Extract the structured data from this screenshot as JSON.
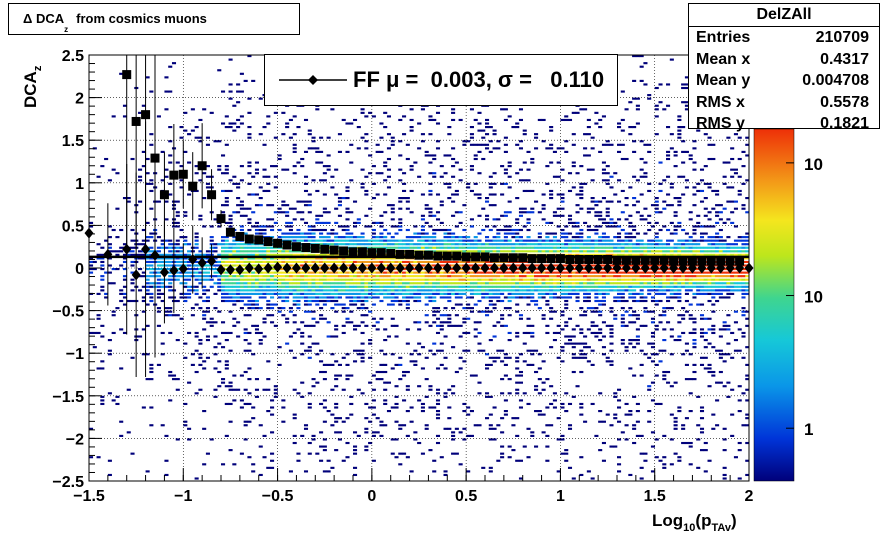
{
  "chart_data": {
    "type": "heatmap",
    "title": "Δ DCA",
    "title_sub": "z",
    "title_rest": "from cosmics muons",
    "xlabel": "Log",
    "xlabel_sub1": "10",
    "xlabel_paren": "(p",
    "xlabel_sub2": "TAv",
    "xlabel_close": ")",
    "ylabel": "DCA",
    "ylabel_sub": "z",
    "xlim": [
      -1.5,
      2
    ],
    "ylim": [
      -2.5,
      2.5
    ],
    "x_ticks": [
      "−1.5",
      "−1",
      "−0.5",
      "0",
      "0.5",
      "1",
      "1.5",
      "2"
    ],
    "x_tick_values": [
      -1.5,
      -1,
      -0.5,
      0,
      0.5,
      1,
      1.5,
      2
    ],
    "y_ticks": [
      "−2.5",
      "−2",
      "−1.5",
      "−1",
      "−0.5",
      "0",
      "0.5",
      "1",
      "1.5",
      "2",
      "2.5"
    ],
    "y_tick_values": [
      -2.5,
      -2,
      -1.5,
      -1,
      -0.5,
      0,
      0.5,
      1,
      1.5,
      2,
      2.5
    ],
    "z_scale": "log",
    "z_ticks": [
      "1",
      "10",
      "10"
    ],
    "z_tick_values": [
      1,
      10,
      100
    ],
    "grid": true,
    "stats": {
      "name": "DelZAll",
      "rows": [
        {
          "label": "Entries",
          "value": "210709"
        },
        {
          "label": "Mean x",
          "value": "0.4317"
        },
        {
          "label": "Mean y",
          "value": "0.004708"
        },
        {
          "label": "RMS x",
          "value": "0.5578"
        },
        {
          "label": "RMS y",
          "value": "0.1821"
        }
      ]
    },
    "legend": {
      "text": "FF μ =  0.003, σ =   0.110"
    },
    "fit_line": {
      "x": [
        -1.5,
        2
      ],
      "y": [
        0.13,
        0.13
      ]
    },
    "sigma_series": {
      "marker": "square",
      "x": [
        -1.3,
        -1.25,
        -1.2,
        -1.15,
        -1.1,
        -1.05,
        -1.0,
        -0.95,
        -0.9,
        -0.85,
        -0.8,
        -0.75,
        -0.7,
        -0.65,
        -0.6,
        -0.55,
        -0.5,
        -0.45,
        -0.4,
        -0.35,
        -0.3,
        -0.25,
        -0.2,
        -0.15,
        -0.1,
        -0.05,
        0.0,
        0.05,
        0.1,
        0.15,
        0.2,
        0.25,
        0.3,
        0.35,
        0.4,
        0.45,
        0.5,
        0.55,
        0.6,
        0.65,
        0.7,
        0.75,
        0.8,
        0.85,
        0.9,
        0.95,
        1.0,
        1.05,
        1.1,
        1.15,
        1.2,
        1.25,
        1.3,
        1.35,
        1.4,
        1.45,
        1.5,
        1.55,
        1.6,
        1.65,
        1.7,
        1.75,
        1.8,
        1.85,
        1.9,
        1.95
      ],
      "y": [
        2.27,
        1.72,
        1.8,
        1.29,
        0.86,
        1.09,
        1.1,
        0.96,
        1.2,
        0.86,
        0.58,
        0.42,
        0.37,
        0.34,
        0.33,
        0.31,
        0.29,
        0.27,
        0.25,
        0.24,
        0.23,
        0.22,
        0.21,
        0.2,
        0.19,
        0.19,
        0.18,
        0.18,
        0.17,
        0.16,
        0.16,
        0.15,
        0.15,
        0.14,
        0.14,
        0.14,
        0.13,
        0.13,
        0.13,
        0.12,
        0.12,
        0.12,
        0.12,
        0.11,
        0.11,
        0.11,
        0.11,
        0.1,
        0.1,
        0.1,
        0.1,
        0.1,
        0.09,
        0.09,
        0.09,
        0.09,
        0.09,
        0.09,
        0.08,
        0.08,
        0.08,
        0.08,
        0.08,
        0.08,
        0.08,
        0.08
      ],
      "err": [
        2.0,
        1.5,
        1.5,
        1.3,
        0.5,
        0.6,
        0.4,
        0.4,
        0.5,
        0.3,
        0.1,
        0.05,
        0.03,
        0.02,
        0.02,
        0.01,
        0.01,
        0.01,
        0.01,
        0.01,
        0.01,
        0.01,
        0.01,
        0.01,
        0.01,
        0.01,
        0.01,
        0.01,
        0.01,
        0.01,
        0.01,
        0.01,
        0.01,
        0.01,
        0.01,
        0.01,
        0.01,
        0.01,
        0.01,
        0.01,
        0.01,
        0.01,
        0.01,
        0.01,
        0.01,
        0.01,
        0.01,
        0.01,
        0.01,
        0.01,
        0.01,
        0.01,
        0.01,
        0.01,
        0.01,
        0.01,
        0.01,
        0.01,
        0.01,
        0.01,
        0.01,
        0.01,
        0.01,
        0.01,
        0.01,
        0.01
      ]
    },
    "mean_series": {
      "marker": "diamond",
      "x": [
        -1.5,
        -1.4,
        -1.3,
        -1.25,
        -1.2,
        -1.15,
        -1.1,
        -1.05,
        -1.0,
        -0.95,
        -0.9,
        -0.85,
        -0.8,
        -0.75,
        -0.7,
        -0.65,
        -0.6,
        -0.55,
        -0.5,
        -0.45,
        -0.4,
        -0.35,
        -0.3,
        -0.25,
        -0.2,
        -0.15,
        -0.1,
        -0.05,
        0.0,
        0.05,
        0.1,
        0.15,
        0.2,
        0.25,
        0.3,
        0.35,
        0.4,
        0.45,
        0.5,
        0.55,
        0.6,
        0.65,
        0.7,
        0.75,
        0.8,
        0.85,
        0.9,
        0.95,
        1.0,
        1.05,
        1.1,
        1.15,
        1.2,
        1.25,
        1.3,
        1.35,
        1.4,
        1.45,
        1.5,
        1.55,
        1.6,
        1.65,
        1.7,
        1.75,
        1.8,
        1.85,
        1.9,
        1.95,
        2.0
      ],
      "y": [
        0.41,
        0.16,
        0.22,
        -0.08,
        0.22,
        0.15,
        -0.05,
        -0.03,
        -0.01,
        0.1,
        0.06,
        0.08,
        -0.02,
        -0.02,
        -0.02,
        0.0,
        -0.01,
        0.0,
        0.01,
        0.0,
        0.0,
        0.0,
        0.0,
        0.0,
        0.0,
        0.0,
        0.0,
        0.0,
        0.0,
        0.0,
        0.0,
        0.0,
        0.0,
        0.0,
        0.0,
        0.0,
        0.0,
        0.0,
        0.0,
        0.0,
        0.0,
        0.0,
        0.0,
        0.0,
        0.0,
        0.0,
        0.0,
        0.0,
        0.0,
        0.0,
        0.0,
        0.0,
        0.0,
        0.0,
        0.0,
        0.0,
        0.0,
        0.0,
        0.0,
        0.0,
        0.0,
        0.0,
        0.0,
        0.0,
        0.0,
        0.0,
        0.0,
        0.0,
        0.0
      ],
      "err": [
        0.3,
        0.6,
        1.0,
        1.2,
        1.5,
        1.2,
        0.6,
        0.5,
        0.3,
        0.4,
        0.3,
        0.2,
        0.05,
        0.03,
        0.02,
        0.02,
        0.01,
        0.01,
        0.01,
        0.01,
        0.01,
        0.01,
        0.01,
        0.01,
        0.01,
        0.01,
        0.01,
        0.01,
        0.01,
        0.01,
        0.01,
        0.01,
        0.01,
        0.01,
        0.01,
        0.01,
        0.01,
        0.01,
        0.01,
        0.01,
        0.01,
        0.01,
        0.01,
        0.01,
        0.01,
        0.01,
        0.01,
        0.01,
        0.01,
        0.01,
        0.01,
        0.01,
        0.01,
        0.01,
        0.01,
        0.01,
        0.01,
        0.01,
        0.01,
        0.01,
        0.01,
        0.01,
        0.01,
        0.01,
        0.01,
        0.01,
        0.01,
        0.01,
        0.01
      ]
    }
  }
}
